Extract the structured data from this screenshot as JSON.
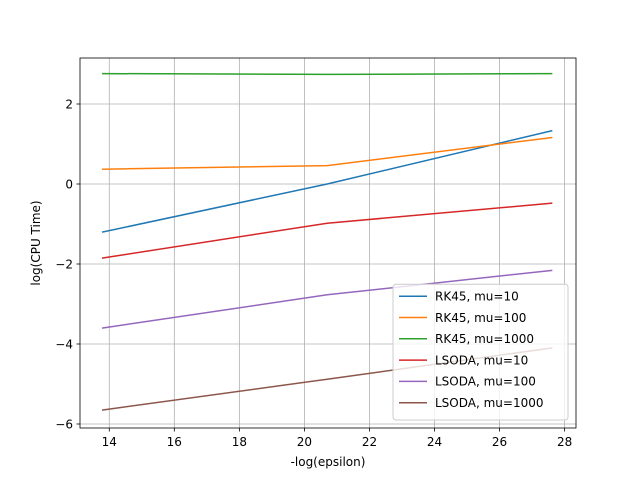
{
  "chart_data": {
    "type": "line",
    "xlabel": "-log(epsilon)",
    "ylabel": "log(CPU Time)",
    "xlim": [
      13.1,
      28.35
    ],
    "ylim": [
      -6.1,
      3.15
    ],
    "xticks": [
      14,
      16,
      18,
      20,
      22,
      24,
      26,
      28
    ],
    "yticks": [
      -6,
      -4,
      -2,
      0,
      2
    ],
    "grid": true,
    "legend_position": "lower-right",
    "x": [
      13.8,
      20.7,
      27.6
    ],
    "series": [
      {
        "name": "RK45, mu=10",
        "color": "#1f77b4",
        "values": [
          -1.2,
          0.0,
          1.33
        ]
      },
      {
        "name": "RK45, mu=100",
        "color": "#ff7f0e",
        "values": [
          0.37,
          0.46,
          1.16
        ]
      },
      {
        "name": "RK45, mu=1000",
        "color": "#2ca02c",
        "values": [
          2.76,
          2.74,
          2.76
        ]
      },
      {
        "name": "LSODA, mu=10",
        "color": "#d62728",
        "values": [
          -1.85,
          -0.98,
          -0.48
        ]
      },
      {
        "name": "LSODA, mu=100",
        "color": "#9467bd",
        "values": [
          -3.6,
          -2.77,
          -2.16
        ]
      },
      {
        "name": "LSODA, mu=1000",
        "color": "#8c564b",
        "values": [
          -5.65,
          -4.88,
          -4.1
        ]
      }
    ]
  }
}
